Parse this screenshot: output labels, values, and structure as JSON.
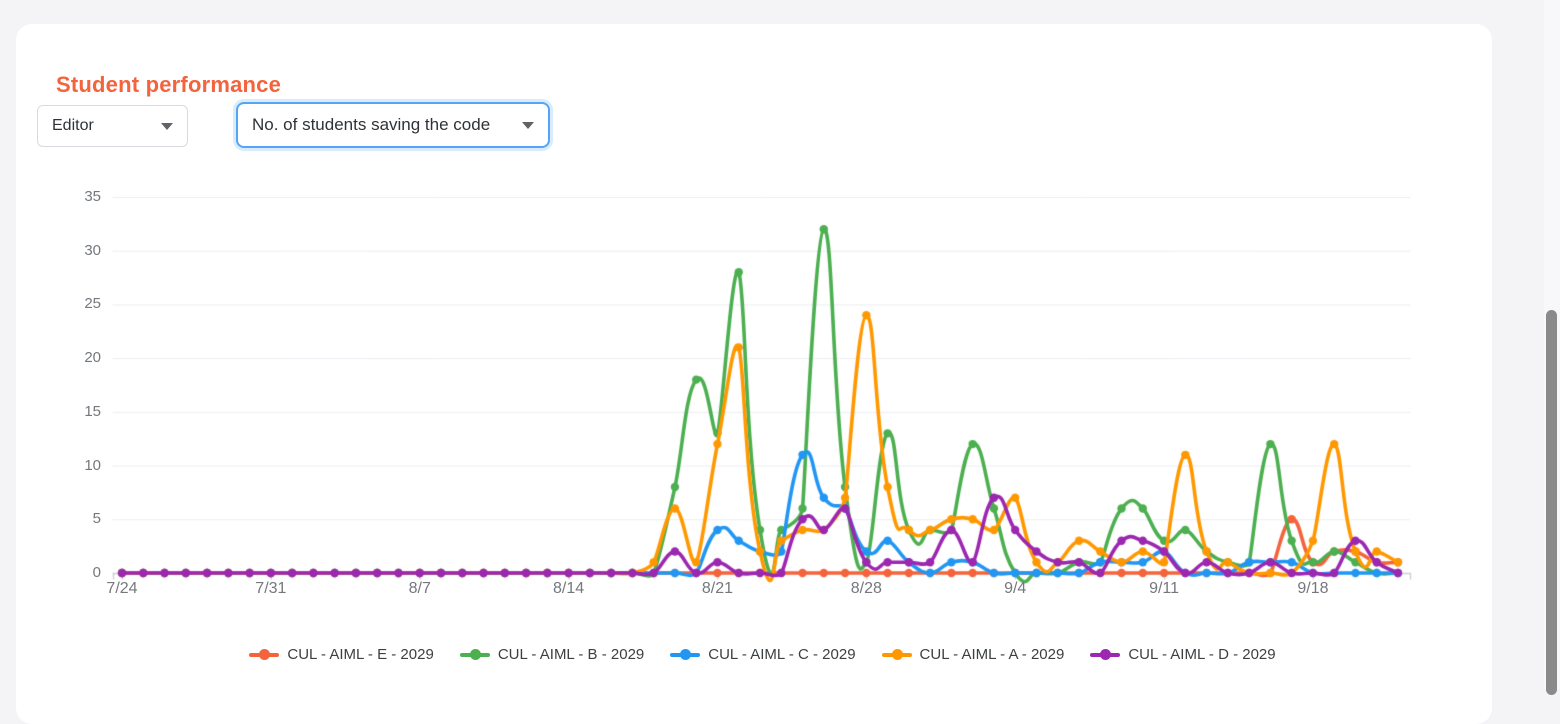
{
  "header": {
    "title": "Student performance",
    "title_color": "#F4633C"
  },
  "filters": {
    "editor_dropdown": {
      "value": "Editor"
    },
    "metric_dropdown": {
      "value": "No. of students saving the code"
    }
  },
  "chart_data": {
    "type": "line",
    "title": "",
    "xlabel": "",
    "ylabel": "",
    "ylim": [
      0,
      35
    ],
    "y_ticks": [
      0,
      5,
      10,
      15,
      20,
      25,
      30,
      35
    ],
    "x_tick_labels": [
      "7/24",
      "7/31",
      "8/7",
      "8/14",
      "8/21",
      "8/28",
      "9/4",
      "9/11",
      "9/18"
    ],
    "grid": "horizontal",
    "legend_position": "bottom",
    "point_style": "filled-circle",
    "x": [
      "7/24",
      "7/25",
      "7/26",
      "7/27",
      "7/28",
      "7/29",
      "7/30",
      "7/31",
      "8/1",
      "8/2",
      "8/3",
      "8/4",
      "8/5",
      "8/6",
      "8/7",
      "8/8",
      "8/9",
      "8/10",
      "8/11",
      "8/12",
      "8/13",
      "8/14",
      "8/15",
      "8/16",
      "8/17",
      "8/18",
      "8/19",
      "8/20",
      "8/21",
      "8/22",
      "8/23",
      "8/24",
      "8/25",
      "8/26",
      "8/27",
      "8/28",
      "8/29",
      "8/30",
      "8/31",
      "9/1",
      "9/2",
      "9/3",
      "9/4",
      "9/5",
      "9/6",
      "9/7",
      "9/8",
      "9/9",
      "9/10",
      "9/11",
      "9/12",
      "9/13",
      "9/14",
      "9/15",
      "9/16",
      "9/17",
      "9/18",
      "9/19",
      "9/20",
      "9/21",
      "9/22"
    ],
    "series": [
      {
        "name": "CUL - AIML - E - 2029",
        "color": "#F4633C",
        "values": [
          0,
          0,
          0,
          0,
          0,
          0,
          0,
          0,
          0,
          0,
          0,
          0,
          0,
          0,
          0,
          0,
          0,
          0,
          0,
          0,
          0,
          0,
          0,
          0,
          0,
          0,
          0,
          0,
          0,
          0,
          0,
          0,
          0,
          0,
          0,
          0,
          0,
          0,
          0,
          0,
          0,
          0,
          0,
          0,
          0,
          0,
          0,
          0,
          0,
          0,
          0,
          0,
          0,
          0,
          0,
          5,
          1,
          2,
          2,
          1,
          1
        ]
      },
      {
        "name": "CUL - AIML - B - 2029",
        "color": "#4CAF50",
        "values": [
          0,
          0,
          0,
          0,
          0,
          0,
          0,
          0,
          0,
          0,
          0,
          0,
          0,
          0,
          0,
          0,
          0,
          0,
          0,
          0,
          0,
          0,
          0,
          0,
          0,
          0,
          8,
          18,
          13,
          28,
          4,
          4,
          6,
          32,
          8,
          1,
          13,
          4,
          4,
          4,
          12,
          6,
          0,
          0,
          0,
          1,
          1,
          6,
          6,
          3,
          4,
          2,
          1,
          1,
          12,
          3,
          1,
          2,
          1,
          0,
          0
        ]
      },
      {
        "name": "CUL - AIML - C - 2029",
        "color": "#2196F3",
        "values": [
          0,
          0,
          0,
          0,
          0,
          0,
          0,
          0,
          0,
          0,
          0,
          0,
          0,
          0,
          0,
          0,
          0,
          0,
          0,
          0,
          0,
          0,
          0,
          0,
          0,
          0,
          0,
          0,
          4,
          3,
          2,
          2,
          11,
          7,
          6,
          2,
          3,
          1,
          0,
          1,
          1,
          0,
          0,
          0,
          0,
          0,
          1,
          1,
          1,
          2,
          0,
          0,
          0,
          1,
          1,
          1,
          0,
          0,
          0,
          0,
          0
        ]
      },
      {
        "name": "CUL - AIML - A - 2029",
        "color": "#FF9800",
        "values": [
          0,
          0,
          0,
          0,
          0,
          0,
          0,
          0,
          0,
          0,
          0,
          0,
          0,
          0,
          0,
          0,
          0,
          0,
          0,
          0,
          0,
          0,
          0,
          0,
          0,
          1,
          6,
          1,
          12,
          21,
          2,
          3,
          4,
          4,
          7,
          24,
          8,
          4,
          4,
          5,
          5,
          4,
          7,
          1,
          1,
          3,
          2,
          1,
          2,
          1,
          11,
          2,
          1,
          0,
          0,
          0,
          3,
          12,
          2,
          2,
          1
        ]
      },
      {
        "name": "CUL - AIML - D - 2029",
        "color": "#9C27B0",
        "values": [
          0,
          0,
          0,
          0,
          0,
          0,
          0,
          0,
          0,
          0,
          0,
          0,
          0,
          0,
          0,
          0,
          0,
          0,
          0,
          0,
          0,
          0,
          0,
          0,
          0,
          0,
          2,
          0,
          1,
          0,
          0,
          0,
          5,
          4,
          6,
          1,
          1,
          1,
          1,
          4,
          1,
          7,
          4,
          2,
          1,
          1,
          0,
          3,
          3,
          2,
          0,
          1,
          0,
          0,
          1,
          0,
          0,
          0,
          3,
          1,
          0
        ]
      }
    ]
  }
}
